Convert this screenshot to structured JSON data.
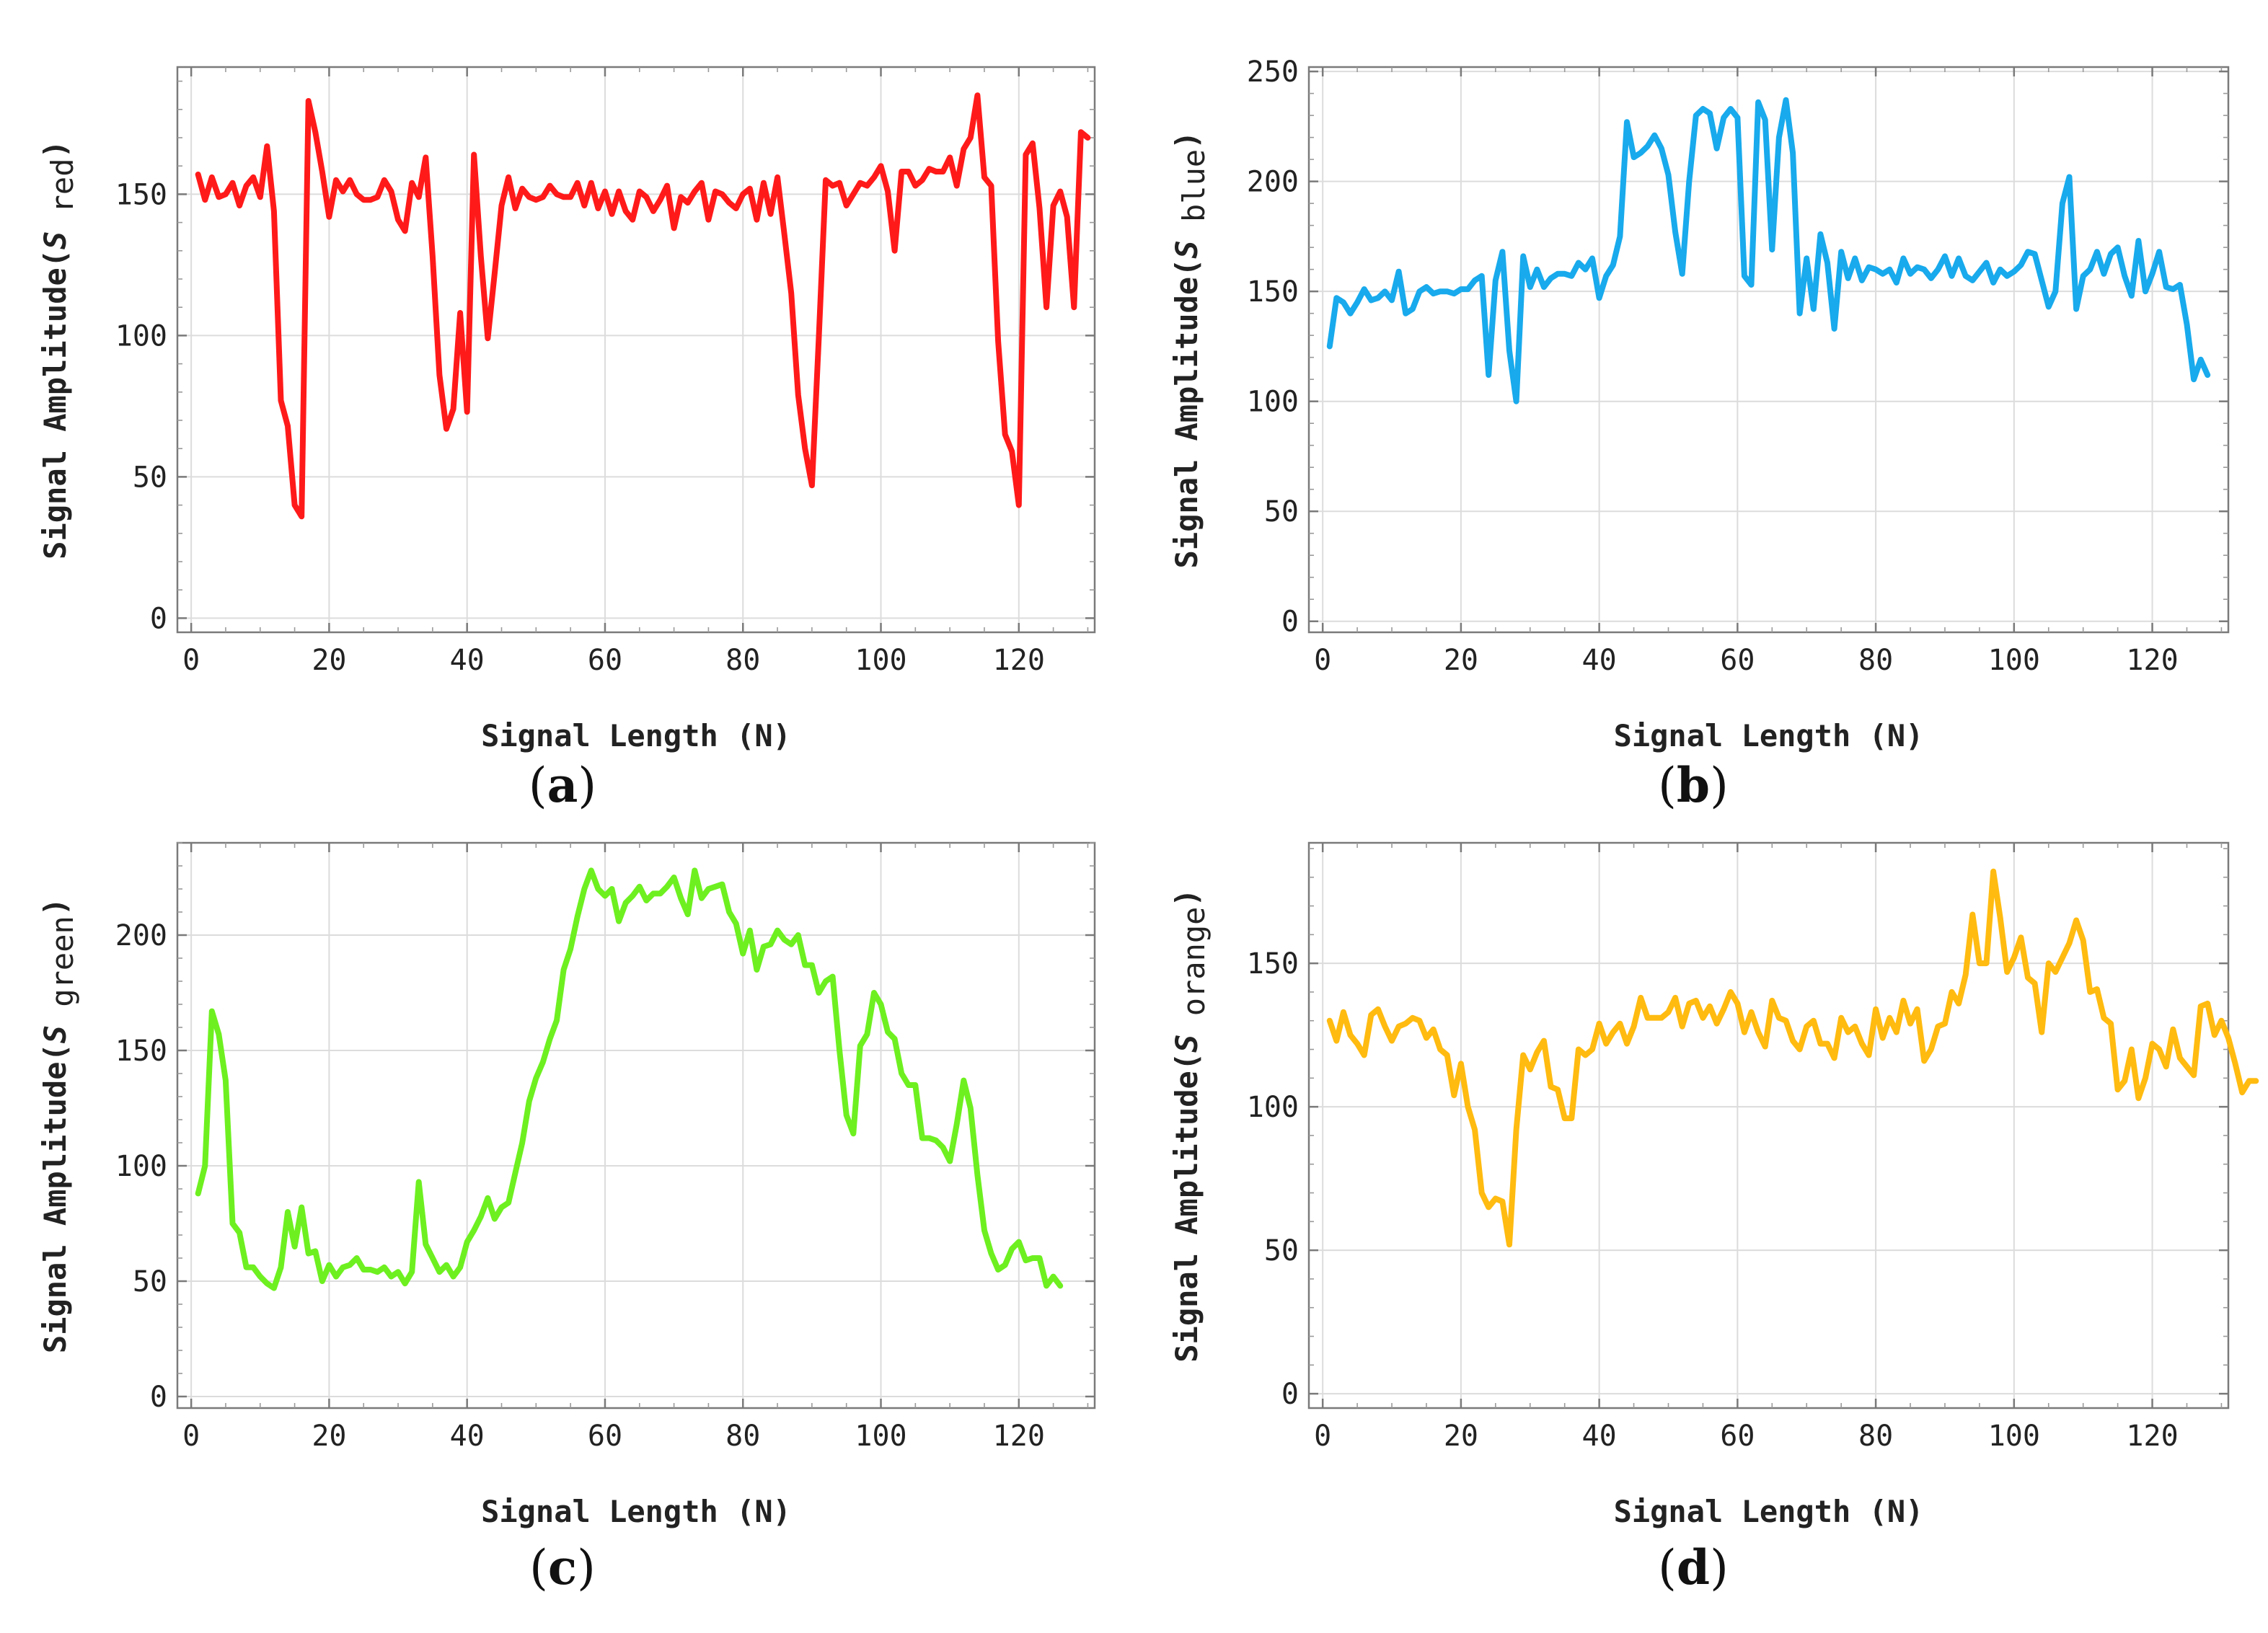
{
  "chart_data": [
    {
      "type": "line",
      "panel": "(a)",
      "caption_letter": "a",
      "xlabel": "Signal Length (N)",
      "ylabel_prefix": "Signal Amplitude(",
      "ylabel_symbol": "S",
      "ylabel_subscript": "red",
      "ylabel_suffix": ")",
      "xlim": [
        -2,
        131
      ],
      "ylim": [
        -5,
        195
      ],
      "xticks": [
        0,
        20,
        40,
        60,
        80,
        100,
        120
      ],
      "yticks": [
        0,
        50,
        100,
        150
      ],
      "grid": true,
      "color": "#ff1a1a",
      "series": [
        {
          "name": "S_red",
          "x_start": 1,
          "values": [
            157,
            148,
            156,
            149,
            150,
            154,
            146,
            153,
            156,
            149,
            167,
            144,
            77,
            68,
            40,
            36,
            183,
            172,
            158,
            142,
            155,
            151,
            155,
            150,
            148,
            148,
            149,
            155,
            151,
            141,
            137,
            154,
            149,
            163,
            128,
            86,
            67,
            74,
            108,
            73,
            164,
            128,
            99,
            122,
            146,
            156,
            145,
            152,
            149,
            148,
            149,
            153,
            150,
            149,
            149,
            154,
            146,
            154,
            145,
            151,
            143,
            151,
            144,
            141,
            151,
            149,
            144,
            148,
            153,
            138,
            149,
            147,
            151,
            154,
            141,
            151,
            150,
            147,
            145,
            150,
            152,
            141,
            154,
            143,
            156,
            136,
            115,
            79,
            60,
            47,
            99,
            155,
            153,
            154,
            146,
            150,
            154,
            153,
            156,
            160,
            151,
            130,
            158,
            158,
            153,
            155,
            159,
            158,
            158,
            163,
            153,
            166,
            170,
            185,
            156,
            153,
            98,
            65,
            59,
            40,
            164,
            168,
            145,
            110,
            146,
            151,
            142,
            110,
            172,
            170
          ]
        }
      ]
    },
    {
      "type": "line",
      "panel": "(b)",
      "caption_letter": "b",
      "xlabel": "Signal Length (N)",
      "ylabel_prefix": "Signal Amplitude(",
      "ylabel_symbol": "S",
      "ylabel_subscript": "blue",
      "ylabel_suffix": ")",
      "xlim": [
        -2,
        131
      ],
      "ylim": [
        -5,
        252
      ],
      "xticks": [
        0,
        20,
        40,
        60,
        80,
        100,
        120
      ],
      "yticks": [
        0,
        50,
        100,
        150,
        200,
        250
      ],
      "grid": true,
      "color": "#18aaec",
      "series": [
        {
          "name": "S_blue",
          "x_start": 1,
          "values": [
            125,
            147,
            145,
            140,
            145,
            151,
            146,
            147,
            150,
            146,
            159,
            140,
            142,
            150,
            152,
            149,
            150,
            150,
            149,
            151,
            151,
            155,
            157,
            112,
            155,
            168,
            123,
            100,
            166,
            152,
            160,
            152,
            156,
            158,
            158,
            157,
            163,
            160,
            165,
            147,
            157,
            162,
            175,
            227,
            211,
            213,
            216,
            221,
            215,
            203,
            177,
            158,
            200,
            230,
            233,
            231,
            215,
            229,
            233,
            229,
            157,
            153,
            236,
            228,
            169,
            220,
            237,
            213,
            140,
            165,
            142,
            176,
            163,
            133,
            168,
            156,
            165,
            155,
            161,
            160,
            158,
            160,
            154,
            165,
            158,
            161,
            160,
            156,
            160,
            166,
            157,
            165,
            157,
            155,
            159,
            163,
            154,
            160,
            157,
            159,
            162,
            168,
            167,
            155,
            143,
            150,
            190,
            202,
            142,
            157,
            160,
            168,
            158,
            167,
            170,
            157,
            148,
            173,
            150,
            158,
            168,
            152,
            151,
            153,
            135,
            110,
            119,
            112
          ]
        }
      ]
    },
    {
      "type": "line",
      "panel": "(c)",
      "caption_letter": "c",
      "xlabel": "Signal Length (N)",
      "ylabel_prefix": "Signal Amplitude(",
      "ylabel_symbol": "S",
      "ylabel_subscript": "green",
      "ylabel_suffix": ")",
      "xlim": [
        -2,
        131
      ],
      "ylim": [
        -5,
        240
      ],
      "xticks": [
        0,
        20,
        40,
        60,
        80,
        100,
        120
      ],
      "yticks": [
        0,
        50,
        100,
        150,
        200
      ],
      "grid": true,
      "color": "#6ef020",
      "series": [
        {
          "name": "S_green",
          "x_start": 1,
          "values": [
            88,
            100,
            167,
            157,
            137,
            75,
            71,
            56,
            56,
            52,
            49,
            47,
            56,
            80,
            65,
            82,
            62,
            63,
            50,
            57,
            52,
            56,
            57,
            60,
            55,
            55,
            54,
            56,
            52,
            54,
            49,
            54,
            93,
            66,
            60,
            54,
            57,
            52,
            56,
            67,
            72,
            78,
            86,
            77,
            82,
            84,
            97,
            110,
            128,
            138,
            145,
            155,
            163,
            185,
            194,
            208,
            220,
            228,
            220,
            217,
            220,
            206,
            214,
            217,
            221,
            215,
            218,
            218,
            221,
            225,
            216,
            209,
            228,
            216,
            220,
            221,
            222,
            210,
            205,
            192,
            202,
            185,
            195,
            196,
            202,
            198,
            196,
            200,
            187,
            187,
            175,
            180,
            182,
            150,
            122,
            114,
            152,
            157,
            175,
            170,
            158,
            155,
            140,
            135,
            135,
            112,
            112,
            111,
            108,
            102,
            118,
            137,
            125,
            96,
            72,
            62,
            55,
            57,
            64,
            67,
            59,
            60,
            60,
            48,
            52,
            48
          ]
        }
      ]
    },
    {
      "type": "line",
      "panel": "(d)",
      "caption_letter": "d",
      "xlabel": "Signal Length (N)",
      "ylabel_prefix": "Signal Amplitude(",
      "ylabel_symbol": "S",
      "ylabel_subscript": "orange",
      "ylabel_suffix": ")",
      "xlim": [
        -2,
        131
      ],
      "ylim": [
        -5,
        192
      ],
      "xticks": [
        0,
        20,
        40,
        60,
        80,
        100,
        120
      ],
      "yticks": [
        0,
        50,
        100,
        150
      ],
      "grid": true,
      "color": "#ffbb10",
      "series": [
        {
          "name": "S_orange",
          "x_start": 1,
          "values": [
            130,
            123,
            133,
            125,
            122,
            118,
            132,
            134,
            128,
            123,
            128,
            129,
            131,
            130,
            124,
            127,
            120,
            118,
            104,
            115,
            100,
            92,
            70,
            65,
            68,
            67,
            52,
            92,
            118,
            113,
            119,
            123,
            107,
            106,
            96,
            96,
            120,
            118,
            120,
            129,
            122,
            126,
            129,
            122,
            128,
            138,
            131,
            131,
            131,
            133,
            138,
            128,
            136,
            137,
            131,
            135,
            129,
            134,
            140,
            136,
            126,
            133,
            126,
            121,
            137,
            131,
            130,
            123,
            120,
            128,
            130,
            122,
            122,
            117,
            131,
            126,
            128,
            122,
            118,
            134,
            124,
            131,
            126,
            137,
            129,
            134,
            116,
            120,
            128,
            129,
            140,
            136,
            146,
            167,
            150,
            150,
            182,
            166,
            147,
            152,
            159,
            145,
            143,
            126,
            150,
            147,
            152,
            157,
            165,
            158,
            140,
            141,
            131,
            129,
            106,
            109,
            120,
            103,
            110,
            122,
            120,
            114,
            127,
            117,
            114,
            111,
            135,
            136,
            125,
            130,
            124,
            115,
            105,
            109,
            109
          ]
        }
      ]
    }
  ]
}
